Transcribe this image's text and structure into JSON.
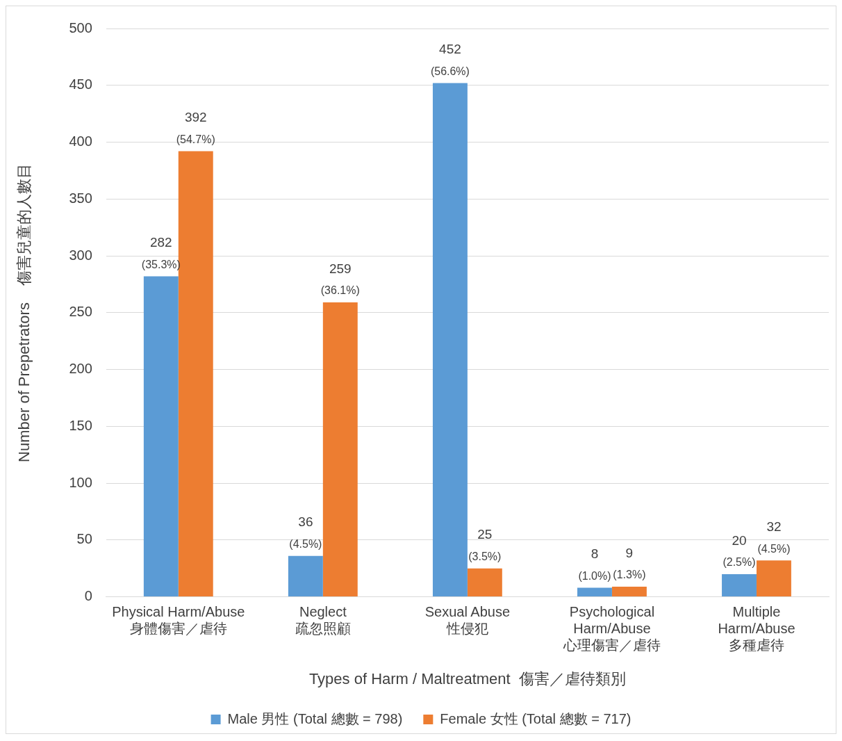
{
  "chart_data": {
    "type": "bar",
    "categories": [
      "Physical Harm/Abuse\n身體傷害／虐待",
      "Neglect\n疏忽照顧",
      "Sexual Abuse\n性侵犯",
      "Psychological\nHarm/Abuse\n心理傷害／虐待",
      "Multiple\nHarm/Abuse\n多種虐待"
    ],
    "series": [
      {
        "name": "Male 男性 (Total 總數 = 798)",
        "color": "#5b9bd5",
        "values": [
          282,
          36,
          452,
          8,
          20
        ],
        "value_labels": [
          "282\n(35.3%)",
          "36\n(4.5%)",
          "452\n(56.6%)",
          "8\n(1.0%)",
          "20\n(2.5%)"
        ]
      },
      {
        "name": "Female 女性 (Total 總數 = 717)",
        "color": "#ed7d31",
        "values": [
          392,
          259,
          25,
          9,
          32
        ],
        "value_labels": [
          "392\n(54.7%)",
          "259\n(36.1%)",
          "25\n(3.5%)",
          "9\n(1.3%)",
          "32\n(4.5%)"
        ]
      }
    ],
    "xlabel": "Types of Harm / Maltreatment  傷害／虐待類別",
    "ylabel": "Number of Prepetrators    傷害兒童的人數目",
    "ylim": [
      0,
      500
    ],
    "yticks": [
      0,
      50,
      100,
      150,
      200,
      250,
      300,
      350,
      400,
      450,
      500
    ],
    "grid": "y",
    "legend": "bottom"
  }
}
